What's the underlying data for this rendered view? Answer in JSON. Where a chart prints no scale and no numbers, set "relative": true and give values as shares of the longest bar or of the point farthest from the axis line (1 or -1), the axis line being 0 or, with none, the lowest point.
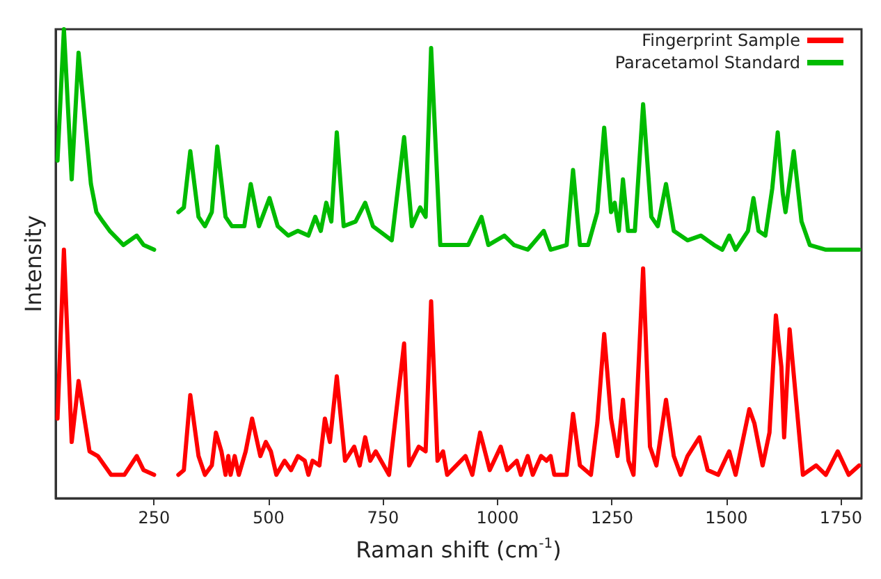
{
  "chart_data": {
    "type": "line",
    "relative": true,
    "xlabel": "Raman shift (cm$^{-1}$)",
    "ylabel": "Intensity",
    "xlim": [
      35,
      1795
    ],
    "xticks": [
      250,
      500,
      750,
      1000,
      1250,
      1500,
      1750
    ],
    "grid": false,
    "legend": "top right",
    "marker": "none",
    "line_style": "solid",
    "series": [
      {
        "name": "Fingerprint Sample",
        "color": "#ff0000",
        "x": [
          39,
          53,
          70,
          85,
          109,
          127,
          156,
          185,
          212,
          227,
          250,
          275,
          303,
          315,
          329,
          347,
          361,
          376,
          385,
          397,
          406,
          412,
          417,
          426,
          435,
          450,
          464,
          482,
          494,
          505,
          517,
          535,
          549,
          564,
          579,
          587,
          596,
          611,
          623,
          634,
          649,
          667,
          687,
          699,
          711,
          722,
          734,
          763,
          796,
          807,
          828,
          843,
          855,
          869,
          881,
          890,
          910,
          930,
          945,
          962,
          983,
          1007,
          1021,
          1042,
          1051,
          1066,
          1077,
          1095,
          1107,
          1116,
          1124,
          1151,
          1165,
          1180,
          1204,
          1218,
          1233,
          1248,
          1262,
          1274,
          1286,
          1297,
          1318,
          1333,
          1347,
          1368,
          1385,
          1400,
          1415,
          1441,
          1459,
          1482,
          1506,
          1520,
          1550,
          1561,
          1579,
          1594,
          1608,
          1620,
          1626,
          1638,
          1667,
          1696,
          1717,
          1743,
          1767,
          1790
        ],
        "values": [
          0.17,
          0.53,
          0.12,
          0.25,
          0.1,
          0.09,
          0.05,
          0.05,
          0.09,
          0.06,
          0.05,
          null,
          0.05,
          0.06,
          0.22,
          0.09,
          0.05,
          0.07,
          0.14,
          0.1,
          0.05,
          0.09,
          0.05,
          0.09,
          0.05,
          0.1,
          0.17,
          0.09,
          0.12,
          0.1,
          0.05,
          0.08,
          0.06,
          0.09,
          0.08,
          0.05,
          0.08,
          0.07,
          0.17,
          0.12,
          0.26,
          0.08,
          0.11,
          0.07,
          0.13,
          0.08,
          0.1,
          0.05,
          0.33,
          0.07,
          0.11,
          0.1,
          0.42,
          0.08,
          0.1,
          0.05,
          0.07,
          0.09,
          0.05,
          0.14,
          0.06,
          0.11,
          0.06,
          0.08,
          0.05,
          0.09,
          0.05,
          0.09,
          0.08,
          0.09,
          0.05,
          0.05,
          0.18,
          0.07,
          0.05,
          0.16,
          0.35,
          0.17,
          0.09,
          0.21,
          0.08,
          0.05,
          0.49,
          0.11,
          0.07,
          0.21,
          0.09,
          0.05,
          0.09,
          0.13,
          0.06,
          0.05,
          0.1,
          0.05,
          0.19,
          0.16,
          0.07,
          0.14,
          0.39,
          0.28,
          0.13,
          0.36,
          0.05,
          0.07,
          0.05,
          0.1,
          0.05,
          0.07
        ]
      },
      {
        "name": "Paracetamol Standard",
        "color": "#00bb00",
        "x": [
          39,
          53,
          70,
          85,
          112,
          124,
          138,
          153,
          183,
          212,
          227,
          250,
          275,
          303,
          315,
          329,
          347,
          361,
          376,
          388,
          406,
          420,
          447,
          461,
          479,
          502,
          520,
          543,
          564,
          587,
          602,
          614,
          626,
          637,
          649,
          664,
          690,
          711,
          728,
          769,
          796,
          813,
          831,
          843,
          855,
          875,
          910,
          936,
          965,
          980,
          1015,
          1036,
          1066,
          1101,
          1116,
          1151,
          1165,
          1180,
          1198,
          1218,
          1233,
          1248,
          1256,
          1265,
          1274,
          1285,
          1300,
          1318,
          1336,
          1350,
          1368,
          1385,
          1415,
          1444,
          1473,
          1491,
          1506,
          1520,
          1547,
          1559,
          1570,
          1585,
          1600,
          1612,
          1623,
          1629,
          1647,
          1664,
          1682,
          1717,
          1755,
          1790
        ],
        "values": [
          0.72,
          1.0,
          0.68,
          0.95,
          0.67,
          0.61,
          0.59,
          0.57,
          0.54,
          0.56,
          0.54,
          0.53,
          null,
          0.61,
          0.62,
          0.74,
          0.6,
          0.58,
          0.61,
          0.75,
          0.6,
          0.58,
          0.58,
          0.67,
          0.58,
          0.64,
          0.58,
          0.56,
          0.57,
          0.56,
          0.6,
          0.57,
          0.63,
          0.59,
          0.78,
          0.58,
          0.59,
          0.63,
          0.58,
          0.55,
          0.77,
          0.58,
          0.62,
          0.6,
          0.96,
          0.54,
          0.54,
          0.54,
          0.6,
          0.54,
          0.56,
          0.54,
          0.53,
          0.57,
          0.53,
          0.54,
          0.7,
          0.54,
          0.54,
          0.61,
          0.79,
          0.61,
          0.63,
          0.57,
          0.68,
          0.57,
          0.57,
          0.84,
          0.6,
          0.58,
          0.67,
          0.57,
          0.55,
          0.56,
          0.54,
          0.53,
          0.56,
          0.53,
          0.57,
          0.64,
          0.57,
          0.56,
          0.66,
          0.78,
          0.65,
          0.61,
          0.74,
          0.59,
          0.54,
          0.53,
          0.53,
          0.53
        ]
      }
    ]
  }
}
